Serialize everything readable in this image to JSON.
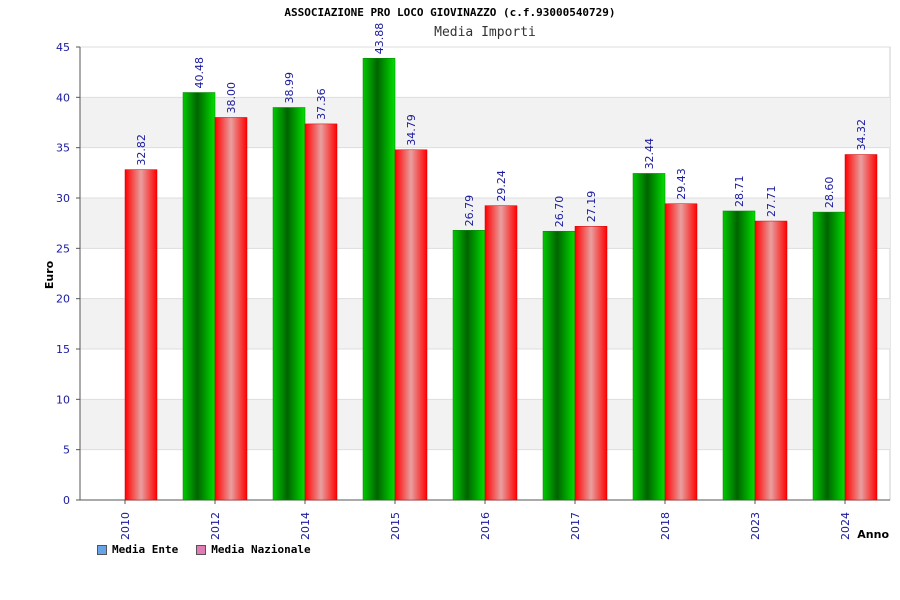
{
  "chart_data": {
    "type": "bar",
    "title": "ASSOCIAZIONE PRO LOCO GIOVINAZZO (c.f.93000540729)",
    "subtitle": "Media Importi",
    "xlabel": "Anno",
    "ylabel": "Euro",
    "ylim": [
      0,
      45
    ],
    "yticks": [
      0,
      5,
      10,
      15,
      20,
      25,
      30,
      35,
      40,
      45
    ],
    "categories": [
      "2010",
      "2012",
      "2014",
      "2015",
      "2016",
      "2017",
      "2018",
      "2023",
      "2024"
    ],
    "series": [
      {
        "name": "Media Ente",
        "color": "#00b000",
        "legend_color": "#66a3e8",
        "values": [
          null,
          40.48,
          38.99,
          43.88,
          26.79,
          26.7,
          32.44,
          28.71,
          28.6
        ],
        "labels": [
          "",
          "40.48",
          "38.99",
          "43.88",
          "26.79",
          "26.70",
          "32.44",
          "28.71",
          "28.60"
        ]
      },
      {
        "name": "Media Nazionale",
        "color": "#ff0000",
        "legend_color": "#e07bb5",
        "values": [
          32.82,
          38.0,
          37.36,
          34.79,
          29.24,
          27.19,
          29.43,
          27.71,
          34.32
        ],
        "labels": [
          "32.82",
          "38.00",
          "37.36",
          "34.79",
          "29.24",
          "27.19",
          "29.43",
          "27.71",
          "34.32"
        ]
      }
    ],
    "grid": true,
    "legend": "bottom-left"
  }
}
